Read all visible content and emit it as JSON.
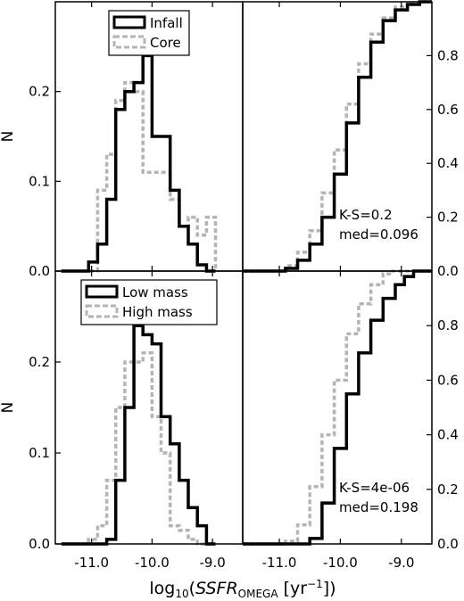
{
  "chart_data": [
    {
      "type": "histogram",
      "panel": "top-left",
      "ylabel": "N",
      "xlim": [
        -11.6,
        -8.5
      ],
      "ylim": [
        0,
        0.3
      ],
      "bin_edges": [
        -11.5,
        -11.35,
        -11.2,
        -11.05,
        -10.9,
        -10.75,
        -10.6,
        -10.45,
        -10.3,
        -10.15,
        -10.0,
        -9.85,
        -9.7,
        -9.55,
        -9.4,
        -9.25,
        -9.1,
        -8.95
      ],
      "series": [
        {
          "name": "Infall",
          "style": "solid-black",
          "values": [
            0,
            0,
            0,
            0.01,
            0.03,
            0.08,
            0.18,
            0.2,
            0.21,
            0.24,
            0.15,
            0.15,
            0.09,
            0.05,
            0.03,
            0.007,
            0,
            0
          ]
        },
        {
          "name": "Core",
          "style": "dashed-gray",
          "values": [
            0,
            0,
            0,
            0,
            0.09,
            0.13,
            0.19,
            0.21,
            0.2,
            0.11,
            0.11,
            0.11,
            0.08,
            0.05,
            0.06,
            0.04,
            0.06,
            0
          ]
        }
      ],
      "legend": {
        "position": "top-center"
      },
      "yticks": [
        "0.0",
        "0.1",
        "0.2"
      ]
    },
    {
      "type": "cdf",
      "panel": "top-right",
      "xlim": [
        -11.6,
        -8.5
      ],
      "ylim": [
        0,
        1.0
      ],
      "series": [
        {
          "name": "Infall",
          "style": "solid-black",
          "x": [
            -11.1,
            -10.9,
            -10.7,
            -10.5,
            -10.3,
            -10.1,
            -9.9,
            -9.7,
            -9.5,
            -9.3,
            -9.1,
            -8.9,
            -8.7,
            -8.6
          ],
          "y": [
            0,
            0.01,
            0.04,
            0.1,
            0.2,
            0.36,
            0.55,
            0.72,
            0.85,
            0.93,
            0.97,
            0.99,
            1.0,
            1.0
          ]
        },
        {
          "name": "Core",
          "style": "dashed-gray",
          "x": [
            -11.1,
            -10.9,
            -10.7,
            -10.5,
            -10.3,
            -10.1,
            -9.9,
            -9.7,
            -9.5,
            -9.3,
            -9.1,
            -8.9,
            -8.7,
            -8.6
          ],
          "y": [
            0,
            0.02,
            0.07,
            0.15,
            0.29,
            0.45,
            0.62,
            0.77,
            0.88,
            0.94,
            0.98,
            0.995,
            1.0,
            1.0
          ]
        }
      ],
      "yticks": [
        "0.0",
        "0.2",
        "0.4",
        "0.6",
        "0.8"
      ],
      "annotation": [
        "K-S=0.2",
        "med=0.096"
      ]
    },
    {
      "type": "histogram",
      "panel": "bottom-left",
      "ylabel": "N",
      "xlim": [
        -11.6,
        -8.5
      ],
      "ylim": [
        0,
        0.3
      ],
      "bin_edges": [
        -11.5,
        -11.35,
        -11.2,
        -11.05,
        -10.9,
        -10.75,
        -10.6,
        -10.45,
        -10.3,
        -10.15,
        -10.0,
        -9.85,
        -9.7,
        -9.55,
        -9.4,
        -9.25,
        -9.1,
        -8.95
      ],
      "series": [
        {
          "name": "Low mass",
          "style": "solid-black",
          "values": [
            0,
            0,
            0,
            0,
            0,
            0.005,
            0.07,
            0.15,
            0.24,
            0.23,
            0.22,
            0.14,
            0.11,
            0.07,
            0.04,
            0.02,
            0,
            0
          ]
        },
        {
          "name": "High mass",
          "style": "dashed-gray",
          "values": [
            0,
            0,
            0,
            0.005,
            0.02,
            0.07,
            0.15,
            0.2,
            0.2,
            0.21,
            0.14,
            0.1,
            0.02,
            0.015,
            0.005,
            0,
            0,
            0
          ]
        }
      ],
      "legend": {
        "position": "top-center"
      },
      "yticks": [
        "0.0",
        "0.1",
        "0.2"
      ]
    },
    {
      "type": "cdf",
      "panel": "bottom-right",
      "xlim": [
        -11.6,
        -8.5
      ],
      "ylim": [
        0,
        1.0
      ],
      "series": [
        {
          "name": "Low mass",
          "style": "solid-black",
          "x": [
            -10.65,
            -10.5,
            -10.3,
            -10.1,
            -9.9,
            -9.7,
            -9.5,
            -9.3,
            -9.1,
            -8.95,
            -8.8,
            -8.7
          ],
          "y": [
            0,
            0.02,
            0.15,
            0.35,
            0.55,
            0.7,
            0.82,
            0.9,
            0.95,
            0.98,
            1.0,
            1.0
          ]
        },
        {
          "name": "High mass",
          "style": "dashed-gray",
          "x": [
            -11.0,
            -10.9,
            -10.7,
            -10.5,
            -10.3,
            -10.1,
            -9.9,
            -9.7,
            -9.5,
            -9.3,
            -9.15,
            -9.05
          ],
          "y": [
            0,
            0.01,
            0.07,
            0.21,
            0.4,
            0.6,
            0.77,
            0.88,
            0.95,
            0.99,
            1.0,
            1.0
          ]
        }
      ],
      "yticks": [
        "0.0",
        "0.2",
        "0.4",
        "0.6",
        "0.8"
      ],
      "annotation": [
        "K-S=4e-06",
        "med=0.198"
      ]
    }
  ],
  "xticks": [
    "-11.0",
    "-10.0",
    "-9.0"
  ],
  "tick_values": [
    -11.0,
    -10.0,
    -9.0
  ],
  "ylabel_left": "N",
  "xlabel": {
    "prefix": "log",
    "sub": "10",
    "open": "(",
    "var": "SSFR",
    "var_sub": "OMEGA",
    "unit": " [yr",
    "sup": "−1",
    "close": "])"
  }
}
